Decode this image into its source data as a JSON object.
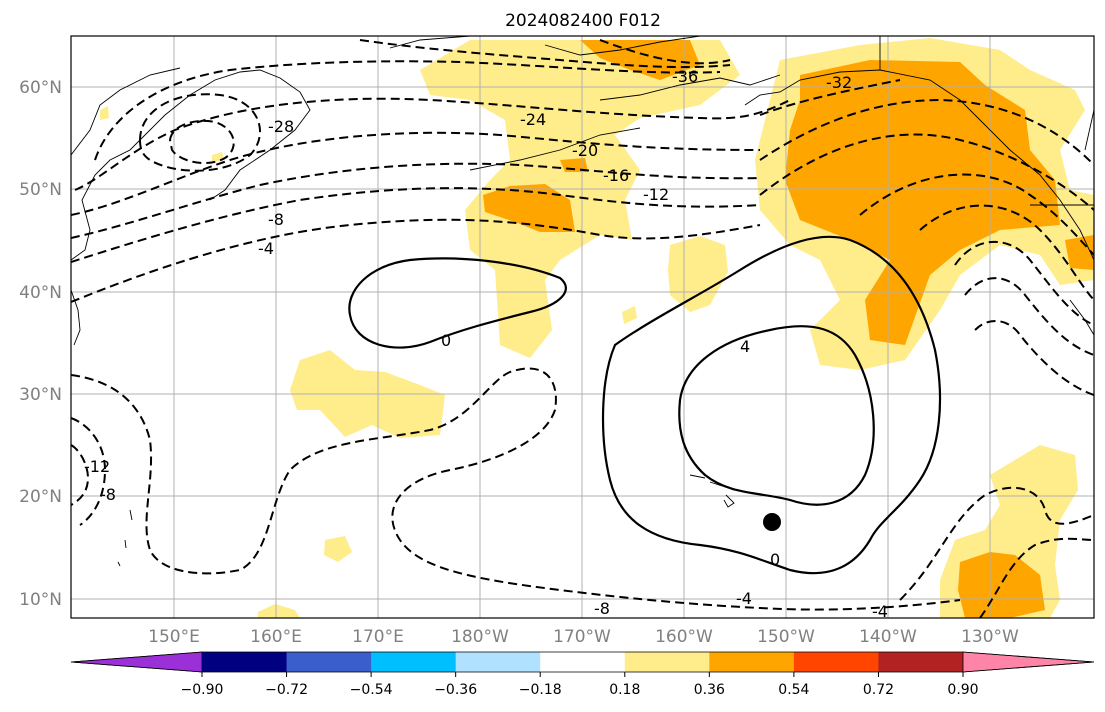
{
  "title": "2024082400 F012",
  "lat_labels": [
    "60°N",
    "50°N",
    "40°N",
    "30°N",
    "20°N",
    "10°N"
  ],
  "lon_labels": [
    "150°E",
    "160°E",
    "170°E",
    "180°W",
    "170°W",
    "160°W",
    "150°W",
    "140°W",
    "130°W"
  ],
  "contour_labels": [
    "-36",
    "-32",
    "-28",
    "-24",
    "-20",
    "-16",
    "-12",
    "-12",
    "-8",
    "-8",
    "-8",
    "-4",
    "-4",
    "-4",
    "0",
    "0",
    "4"
  ],
  "colorbar": {
    "ticks": [
      "−0.90",
      "−0.72",
      "−0.54",
      "−0.36",
      "−0.18",
      "0.18",
      "0.36",
      "0.54",
      "0.72",
      "0.90"
    ],
    "colors": [
      "#9b30d8",
      "#000080",
      "#3a5fcd",
      "#00bfff",
      "#b0e2ff",
      "#ffffff",
      "#ffec8b",
      "#ffa500",
      "#ff4500",
      "#b22222",
      "#ff85a8"
    ]
  },
  "marker": "storm-center-dot"
}
